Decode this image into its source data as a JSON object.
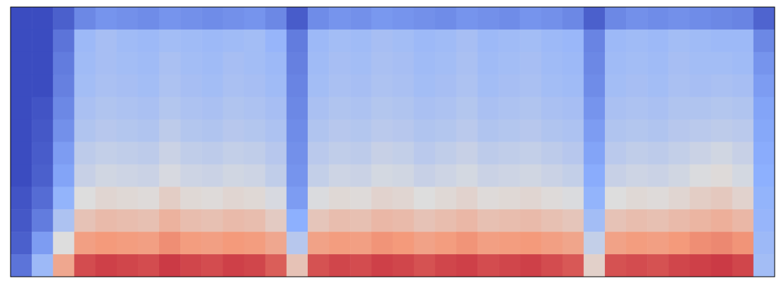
{
  "chart_data": {
    "type": "heatmap",
    "color": "coolwarm",
    "tick_labels": false,
    "color_range": [
      0,
      1
    ],
    "cells": [
      [
        0,
        0,
        0.05,
        0.15,
        0.18,
        0.17,
        0.16,
        0.18,
        0.17,
        0.16,
        0.17,
        0.18,
        0.15,
        0.04,
        0.16,
        0.18,
        0.17,
        0.19,
        0.18,
        0.17,
        0.16,
        0.18,
        0.17,
        0.16,
        0.18,
        0.17,
        0.15,
        0.05,
        0.15,
        0.17,
        0.16,
        0.17,
        0.16,
        0.15,
        0.14,
        0.06
      ],
      [
        0,
        0,
        0.1,
        0.3,
        0.33,
        0.31,
        0.3,
        0.32,
        0.31,
        0.3,
        0.31,
        0.32,
        0.28,
        0.12,
        0.3,
        0.32,
        0.31,
        0.33,
        0.32,
        0.3,
        0.31,
        0.33,
        0.3,
        0.31,
        0.32,
        0.3,
        0.29,
        0.14,
        0.3,
        0.31,
        0.3,
        0.32,
        0.31,
        0.3,
        0.3,
        0.15
      ],
      [
        0,
        0,
        0.12,
        0.31,
        0.33,
        0.32,
        0.31,
        0.34,
        0.32,
        0.31,
        0.33,
        0.32,
        0.3,
        0.13,
        0.31,
        0.33,
        0.32,
        0.34,
        0.33,
        0.31,
        0.32,
        0.34,
        0.31,
        0.32,
        0.33,
        0.31,
        0.3,
        0.15,
        0.31,
        0.32,
        0.31,
        0.33,
        0.32,
        0.32,
        0.31,
        0.18
      ],
      [
        0,
        0,
        0.13,
        0.32,
        0.34,
        0.33,
        0.32,
        0.35,
        0.33,
        0.32,
        0.34,
        0.33,
        0.31,
        0.14,
        0.32,
        0.34,
        0.33,
        0.35,
        0.34,
        0.32,
        0.33,
        0.35,
        0.32,
        0.33,
        0.34,
        0.32,
        0.31,
        0.16,
        0.32,
        0.33,
        0.32,
        0.34,
        0.33,
        0.34,
        0.33,
        0.2
      ],
      [
        0,
        0.02,
        0.15,
        0.34,
        0.36,
        0.35,
        0.34,
        0.37,
        0.35,
        0.34,
        0.36,
        0.35,
        0.33,
        0.15,
        0.34,
        0.36,
        0.35,
        0.37,
        0.36,
        0.34,
        0.35,
        0.37,
        0.34,
        0.35,
        0.36,
        0.34,
        0.33,
        0.18,
        0.34,
        0.35,
        0.34,
        0.36,
        0.36,
        0.37,
        0.36,
        0.22
      ],
      [
        0,
        0.03,
        0.17,
        0.36,
        0.38,
        0.37,
        0.36,
        0.4,
        0.37,
        0.36,
        0.38,
        0.37,
        0.35,
        0.16,
        0.36,
        0.38,
        0.37,
        0.39,
        0.38,
        0.36,
        0.37,
        0.39,
        0.36,
        0.37,
        0.38,
        0.36,
        0.35,
        0.2,
        0.36,
        0.37,
        0.36,
        0.38,
        0.39,
        0.4,
        0.39,
        0.23
      ],
      [
        0,
        0.04,
        0.2,
        0.4,
        0.42,
        0.41,
        0.4,
        0.44,
        0.41,
        0.4,
        0.42,
        0.41,
        0.38,
        0.17,
        0.39,
        0.41,
        0.4,
        0.43,
        0.42,
        0.39,
        0.41,
        0.43,
        0.4,
        0.41,
        0.42,
        0.4,
        0.38,
        0.22,
        0.39,
        0.41,
        0.4,
        0.42,
        0.44,
        0.46,
        0.43,
        0.24
      ],
      [
        0,
        0.05,
        0.22,
        0.43,
        0.46,
        0.45,
        0.44,
        0.48,
        0.45,
        0.44,
        0.46,
        0.45,
        0.41,
        0.18,
        0.42,
        0.45,
        0.44,
        0.47,
        0.46,
        0.43,
        0.45,
        0.47,
        0.44,
        0.45,
        0.46,
        0.44,
        0.42,
        0.24,
        0.43,
        0.45,
        0.44,
        0.46,
        0.49,
        0.51,
        0.47,
        0.25
      ],
      [
        0.02,
        0.08,
        0.27,
        0.5,
        0.53,
        0.52,
        0.51,
        0.56,
        0.52,
        0.51,
        0.53,
        0.52,
        0.48,
        0.2,
        0.49,
        0.52,
        0.51,
        0.54,
        0.53,
        0.5,
        0.52,
        0.54,
        0.51,
        0.52,
        0.53,
        0.51,
        0.49,
        0.27,
        0.5,
        0.52,
        0.51,
        0.53,
        0.56,
        0.58,
        0.54,
        0.27
      ],
      [
        0.03,
        0.12,
        0.35,
        0.6,
        0.63,
        0.62,
        0.61,
        0.66,
        0.62,
        0.61,
        0.63,
        0.62,
        0.57,
        0.25,
        0.59,
        0.62,
        0.61,
        0.64,
        0.63,
        0.6,
        0.62,
        0.64,
        0.61,
        0.62,
        0.63,
        0.61,
        0.59,
        0.32,
        0.6,
        0.62,
        0.61,
        0.63,
        0.65,
        0.67,
        0.64,
        0.28
      ],
      [
        0.05,
        0.2,
        0.5,
        0.73,
        0.75,
        0.74,
        0.73,
        0.77,
        0.74,
        0.73,
        0.75,
        0.74,
        0.7,
        0.38,
        0.72,
        0.74,
        0.73,
        0.76,
        0.75,
        0.72,
        0.74,
        0.76,
        0.73,
        0.74,
        0.75,
        0.73,
        0.71,
        0.42,
        0.72,
        0.74,
        0.73,
        0.75,
        0.77,
        0.78,
        0.76,
        0.3
      ],
      [
        0.1,
        0.3,
        0.7,
        0.88,
        0.9,
        0.89,
        0.88,
        0.91,
        0.89,
        0.88,
        0.9,
        0.89,
        0.85,
        0.6,
        0.87,
        0.89,
        0.88,
        0.9,
        0.89,
        0.87,
        0.89,
        0.9,
        0.88,
        0.89,
        0.9,
        0.88,
        0.86,
        0.55,
        0.87,
        0.88,
        0.87,
        0.89,
        0.9,
        0.91,
        0.89,
        0.32
      ]
    ]
  }
}
